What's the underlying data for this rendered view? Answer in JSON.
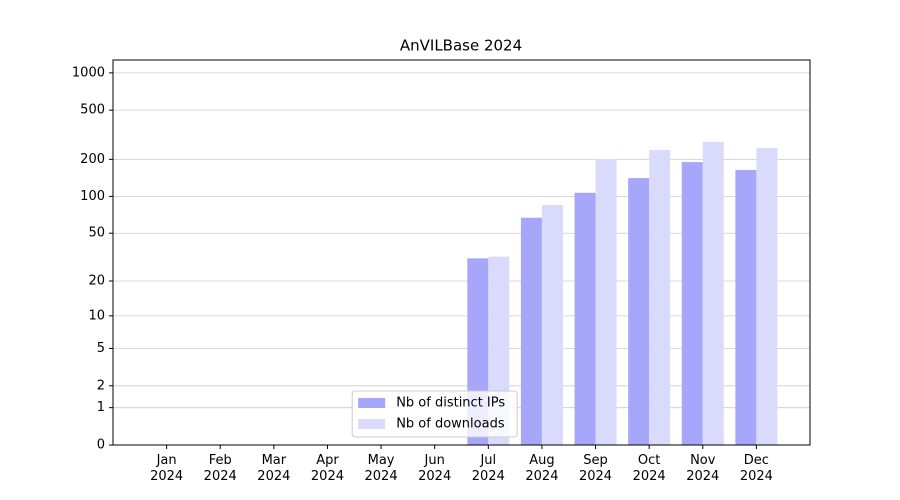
{
  "chart_data": {
    "type": "bar",
    "title": "AnVILBase 2024",
    "categories": [
      "Jan\n2024",
      "Feb\n2024",
      "Mar\n2024",
      "Apr\n2024",
      "May\n2024",
      "Jun\n2024",
      "Jul\n2024",
      "Aug\n2024",
      "Sep\n2024",
      "Oct\n2024",
      "Nov\n2024",
      "Dec\n2024"
    ],
    "series": [
      {
        "name": "Nb of distinct IPs",
        "color": "#a6a6fa",
        "values": [
          0,
          0,
          0,
          0,
          0,
          0,
          31,
          67,
          107,
          141,
          190,
          164
        ]
      },
      {
        "name": "Nb of downloads",
        "color": "#dadafc",
        "values": [
          0,
          0,
          0,
          0,
          0,
          0,
          32,
          85,
          201,
          238,
          277,
          247
        ]
      }
    ],
    "yscale": "log1p",
    "ylim": [
      0,
      1270
    ],
    "yticks": [
      0,
      1,
      2,
      5,
      10,
      20,
      50,
      100,
      200,
      500,
      1000
    ],
    "grid": true,
    "legend": "lower center"
  }
}
